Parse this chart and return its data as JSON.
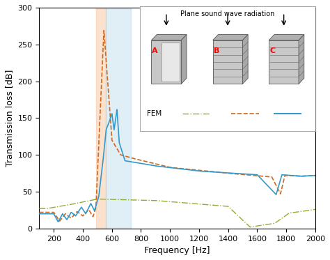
{
  "xlabel": "Frequency [Hz]",
  "ylabel": "Transmission loss [dB]",
  "xlim": [
    100,
    2000
  ],
  "ylim": [
    0,
    300
  ],
  "xticks": [
    200,
    400,
    600,
    800,
    1000,
    1200,
    1400,
    1600,
    1800,
    2000
  ],
  "yticks": [
    0,
    50,
    100,
    150,
    200,
    250,
    300
  ],
  "color_green": "#8fae2e",
  "color_orange": "#d4681a",
  "color_blue": "#3399cc",
  "shade_pink_xmin": 490,
  "shade_pink_xmax": 560,
  "shade_pink_alpha": 0.3,
  "shade_blue_xmin": 560,
  "shade_blue_xmax": 730,
  "shade_blue_alpha": 0.35,
  "inset_title": "Plane sound wave radiation",
  "fem_label": "FEM"
}
